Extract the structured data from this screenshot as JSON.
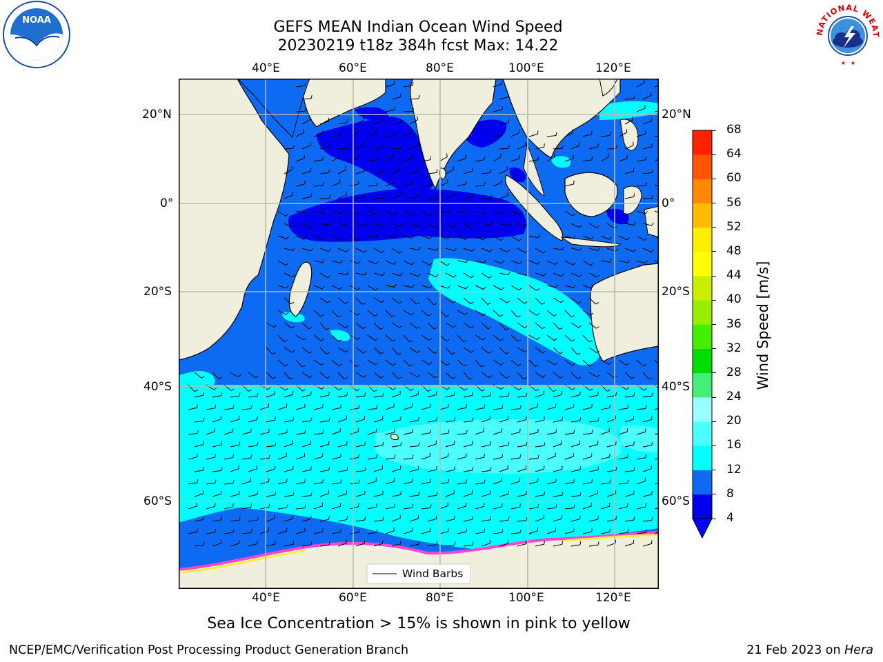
{
  "title": {
    "line1": "GEFS MEAN Indian Ocean Wind Speed",
    "line2": "20230219 t18z 384h fcst   Max: 14.22"
  },
  "logos": {
    "left": "NOAA",
    "right": "NATIONAL WEATHER SERVICE"
  },
  "map": {
    "lon_ticks": [
      "40°E",
      "60°E",
      "80°E",
      "100°E",
      "120°E"
    ],
    "lat_ticks": [
      "20°N",
      "0°",
      "20°S",
      "40°S",
      "60°S"
    ],
    "lon_range": [
      20,
      130
    ],
    "lat_range": [
      -75,
      28
    ],
    "gridlines": true,
    "legend_label": "Wind Barbs"
  },
  "colorbar": {
    "label": "Wind Speed [m/s]",
    "ticks": [
      4,
      8,
      12,
      16,
      20,
      24,
      28,
      32,
      36,
      40,
      44,
      48,
      52,
      56,
      60,
      64,
      68
    ],
    "colors": [
      "#0000ee",
      "#0c6bf2",
      "#00ffff",
      "#4cffff",
      "#99ffff",
      "#44ee77",
      "#00dd00",
      "#44ee00",
      "#99ee00",
      "#ccee00",
      "#ffff00",
      "#ffee00",
      "#ffbb00",
      "#ff8800",
      "#ff5500",
      "#ff2200"
    ],
    "extend_below_color": "#0000ff"
  },
  "caption": "Sea Ice Concentration > 15% is shown in pink to yellow",
  "footer": {
    "left": "NCEP/EMC/Verification Post Processing Product Generation Branch",
    "right_date": "21 Feb 2023 on ",
    "right_host": "Hera"
  }
}
